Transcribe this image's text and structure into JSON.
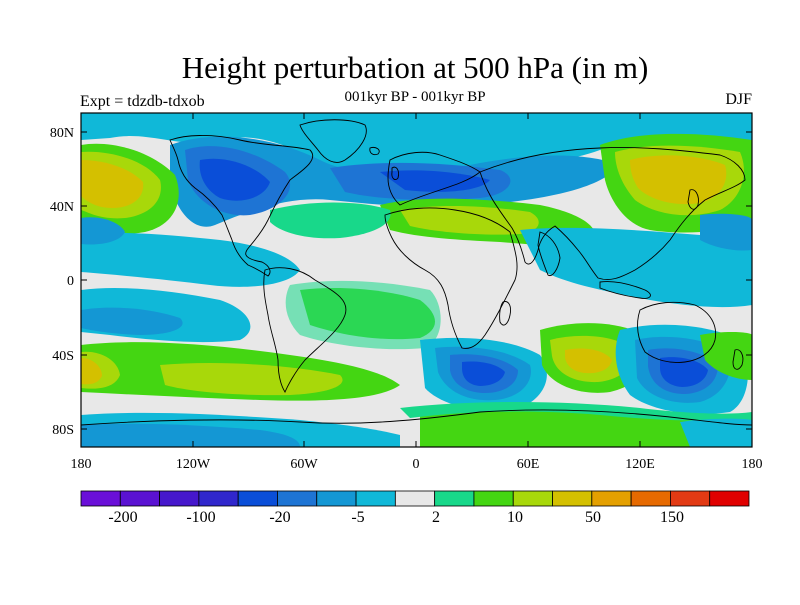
{
  "title": "Height perturbation at 500 hPa (in m)",
  "subtitle": "001kyr BP - 001kyr BP",
  "left_string": "Expt = tdzdb-tdxob",
  "right_string": "DJF",
  "lat_labels": [
    "80N",
    "40N",
    "0",
    "40S",
    "80S"
  ],
  "lon_labels": [
    "180",
    "120W",
    "60W",
    "0",
    "60E",
    "120E",
    "180"
  ],
  "colorbar": {
    "colors": [
      "#6a0fd8",
      "#5a12d2",
      "#4617cc",
      "#3027cc",
      "#0a4ed8",
      "#1e74d4",
      "#1497d4",
      "#10b8d8",
      "#e8e8e8",
      "#18d88a",
      "#44d612",
      "#a8d80a",
      "#d4c000",
      "#e4a000",
      "#e66a00",
      "#e23a14",
      "#e00000"
    ],
    "tick_labels": [
      "-200",
      "-100",
      "-20",
      "-5",
      "2",
      "10",
      "50",
      "150"
    ]
  },
  "palette": {
    "neutral": "#e8e8e8",
    "light_blue": "#10b8d8",
    "mid_blue": "#1497d4",
    "blue": "#1e74d4",
    "deep_blue": "#0a4ed8",
    "indigo": "#3027cc",
    "mint": "#18d88a",
    "green": "#44d612",
    "yellow_green": "#a8d80a",
    "gold": "#d4c000"
  }
}
